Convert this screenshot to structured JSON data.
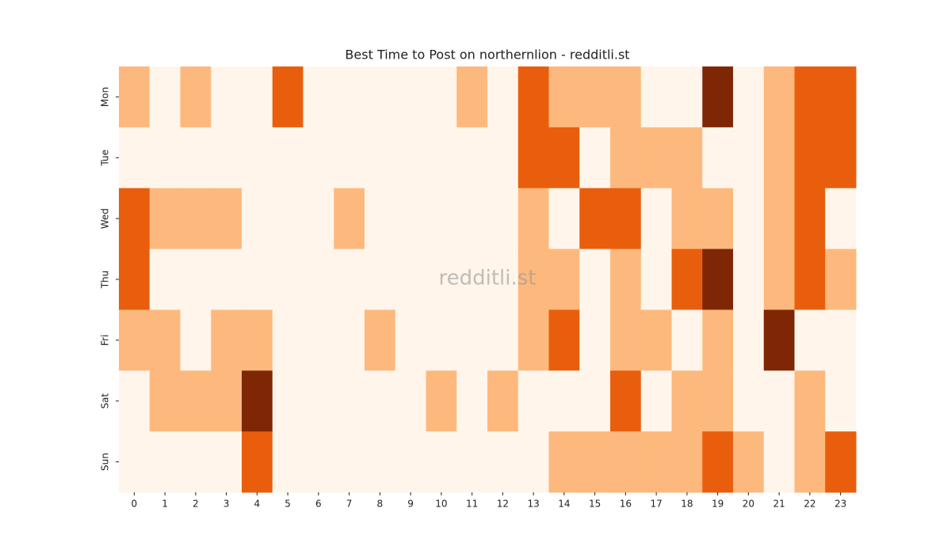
{
  "chart_data": {
    "type": "heatmap",
    "title": "Best Time to Post on northernlion - redditli.st",
    "watermark": "redditli.st",
    "x": [
      0,
      1,
      2,
      3,
      4,
      5,
      6,
      7,
      8,
      9,
      10,
      11,
      12,
      13,
      14,
      15,
      16,
      17,
      18,
      19,
      20,
      21,
      22,
      23
    ],
    "categories": [
      "Mon",
      "Tue",
      "Wed",
      "Thu",
      "Fri",
      "Sat",
      "Sun"
    ],
    "values": [
      [
        1,
        0,
        1,
        0,
        0,
        2,
        0,
        0,
        0,
        0,
        0,
        1,
        0,
        2,
        1,
        1,
        1,
        0,
        0,
        3,
        0,
        1,
        2,
        2
      ],
      [
        0,
        0,
        0,
        0,
        0,
        0,
        0,
        0,
        0,
        0,
        0,
        0,
        0,
        2,
        2,
        0,
        1,
        1,
        1,
        0,
        0,
        1,
        2,
        2
      ],
      [
        2,
        1,
        1,
        1,
        0,
        0,
        0,
        1,
        0,
        0,
        0,
        0,
        0,
        1,
        0,
        2,
        2,
        0,
        1,
        1,
        0,
        1,
        2,
        0
      ],
      [
        2,
        0,
        0,
        0,
        0,
        0,
        0,
        0,
        0,
        0,
        0,
        0,
        0,
        1,
        1,
        0,
        1,
        0,
        2,
        3,
        0,
        1,
        2,
        1
      ],
      [
        1,
        1,
        0,
        1,
        1,
        0,
        0,
        0,
        1,
        0,
        0,
        0,
        0,
        1,
        2,
        0,
        1,
        1,
        0,
        1,
        0,
        3,
        0,
        0
      ],
      [
        0,
        1,
        1,
        1,
        3,
        0,
        0,
        0,
        0,
        0,
        1,
        0,
        1,
        0,
        0,
        0,
        2,
        0,
        1,
        1,
        0,
        0,
        1,
        0
      ],
      [
        0,
        0,
        0,
        0,
        2,
        0,
        0,
        0,
        0,
        0,
        0,
        0,
        0,
        0,
        1,
        1,
        1,
        1,
        1,
        2,
        1,
        0,
        1,
        2
      ]
    ],
    "colors": [
      "#fff5eb",
      "#fdb97d",
      "#e95e0d",
      "#7f2704"
    ]
  }
}
